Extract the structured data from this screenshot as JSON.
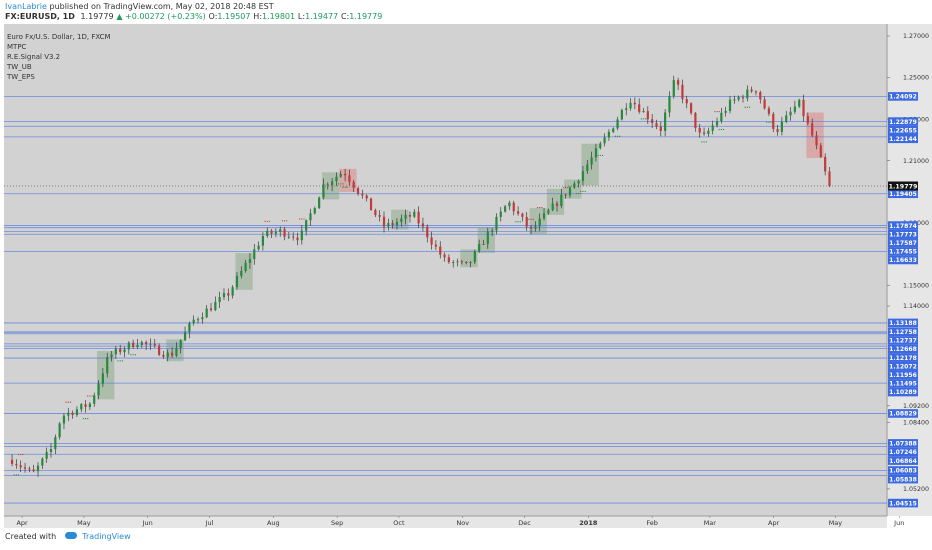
{
  "header": {
    "author": "IvanLabrie",
    "published_text": "published on TradingView.com, May 02, 2018 20:48 EST",
    "symbol": "FX:EURUSD, 1D",
    "last": "1.19779",
    "change": "▲ +0.00272 (+0.23%)",
    "o_label": "O:",
    "o": "1.19507",
    "h_label": "H:",
    "h": "1.19801",
    "l_label": "L:",
    "l": "1.19477",
    "c_label": "C:",
    "c": "1.19779"
  },
  "legend": {
    "title": "Euro Fx/U.S. Dollar, 1D, FXCM",
    "indicators": [
      "MTPC",
      "R.E.Signal V3.2",
      "TW_UB",
      "TW_EPS"
    ]
  },
  "footer": {
    "created_with": "Created with",
    "brand": "TradingView"
  },
  "colors": {
    "background": "#d2d2d2",
    "level_line": "#5b7ee0",
    "label_bg": "#3d6ae0",
    "bull": "#26893c",
    "bear": "#c23a3a",
    "last_price_bg": "#111111"
  },
  "chart_data": {
    "type": "candlestick",
    "y_scale_ticks": [
      "1.27000",
      "1.25000",
      "1.23000",
      "1.21000",
      "1.18000",
      "1.15000",
      "1.14000",
      "1.09200",
      "1.08400",
      "1.05200"
    ],
    "level_labels": [
      "1.24092",
      "1.22879",
      "1.22655",
      "1.22144",
      "1.19405",
      "1.17874",
      "1.17773",
      "1.17587",
      "1.17455",
      "1.16633",
      "1.13188",
      "1.12758",
      "1.12737",
      "1.12668",
      "1.12178",
      "1.12072",
      "1.11956",
      "1.11495",
      "1.10289",
      "1.08829",
      "1.07388",
      "1.07246",
      "1.06864",
      "1.06083",
      "1.05838",
      "1.04515"
    ],
    "last_price_label": "1.19779",
    "x_labels": [
      "Apr",
      "May",
      "Jun",
      "Jul",
      "Aug",
      "Sep",
      "Oct",
      "Nov",
      "Dec",
      "2018",
      "Feb",
      "Mar",
      "Apr",
      "May",
      "Jun"
    ],
    "path_points": [
      [
        "2017-03-31",
        1.066
      ],
      [
        "2017-04-10",
        1.059
      ],
      [
        "2017-04-19",
        1.071
      ],
      [
        "2017-04-24",
        1.087
      ],
      [
        "2017-05-08",
        1.093
      ],
      [
        "2017-05-17",
        1.116
      ],
      [
        "2017-05-31",
        1.123
      ],
      [
        "2017-06-16",
        1.116
      ],
      [
        "2017-06-27",
        1.133
      ],
      [
        "2017-07-14",
        1.146
      ],
      [
        "2017-07-31",
        1.174
      ],
      [
        "2017-08-08",
        1.176
      ],
      [
        "2017-08-18",
        1.173
      ],
      [
        "2017-08-29",
        1.198
      ],
      [
        "2017-09-08",
        1.205
      ],
      [
        "2017-09-28",
        1.178
      ],
      [
        "2017-10-12",
        1.184
      ],
      [
        "2017-10-27",
        1.162
      ],
      [
        "2017-11-07",
        1.159
      ],
      [
        "2017-11-27",
        1.19
      ],
      [
        "2017-12-08",
        1.176
      ],
      [
        "2017-12-29",
        1.199
      ],
      [
        "2018-01-12",
        1.219
      ],
      [
        "2018-01-25",
        1.24
      ],
      [
        "2018-02-09",
        1.225
      ],
      [
        "2018-02-16",
        1.249
      ],
      [
        "2018-03-01",
        1.22
      ],
      [
        "2018-03-15",
        1.238
      ],
      [
        "2018-03-27",
        1.245
      ],
      [
        "2018-04-06",
        1.224
      ],
      [
        "2018-04-17",
        1.238
      ],
      [
        "2018-04-24",
        1.221
      ],
      [
        "2018-05-02",
        1.1978
      ]
    ]
  }
}
